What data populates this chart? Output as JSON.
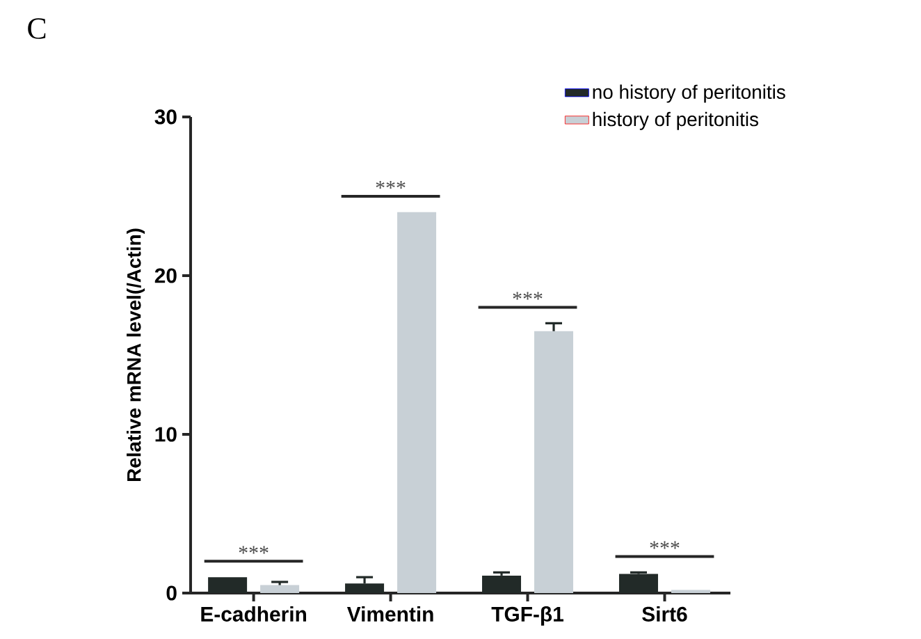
{
  "chart_data": {
    "type": "bar",
    "ylabel": "Relative mRNA level(/Actin)",
    "categories": [
      "E-cadherin",
      "Vimentin",
      "TGF-β1",
      "Sirt6"
    ],
    "series": [
      {
        "name": "no history of peritonitis",
        "color": "#222a28",
        "values": [
          1.0,
          0.6,
          1.1,
          1.2
        ],
        "errors": [
          null,
          0.4,
          0.2,
          0.1
        ]
      },
      {
        "name": "history of peritonitis",
        "color": "#c8d0d6",
        "values": [
          0.5,
          24.0,
          16.5,
          0.2
        ],
        "errors": [
          0.2,
          null,
          0.5,
          null
        ]
      }
    ],
    "ylim": [
      0,
      30
    ],
    "yticks": [
      0,
      10,
      20,
      30
    ],
    "legend": "top right",
    "annotations": [
      "C",
      "***",
      "***",
      "***",
      "***"
    ]
  }
}
